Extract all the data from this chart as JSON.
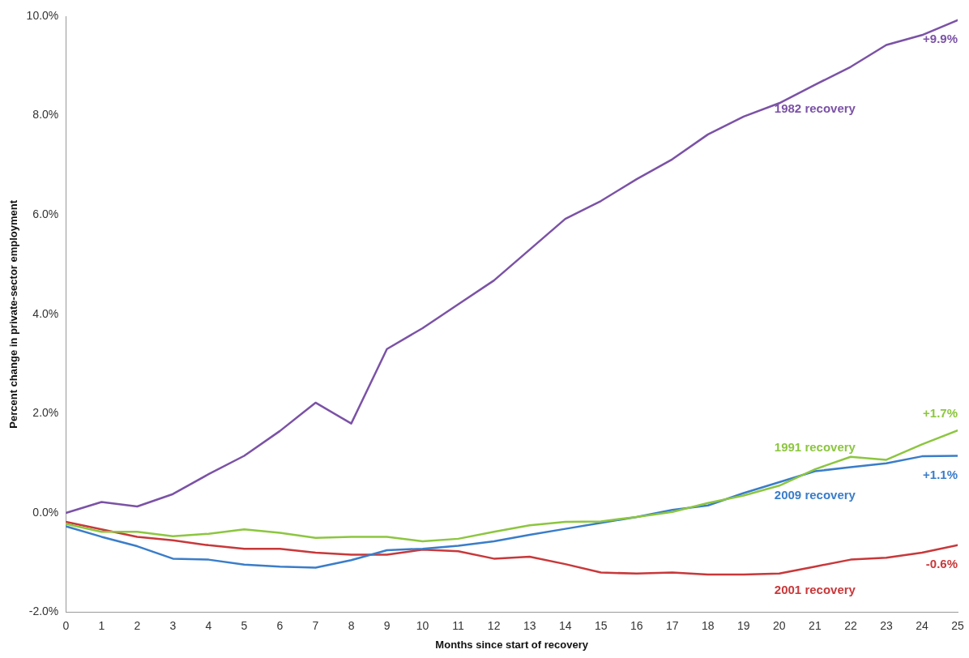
{
  "chart_data": {
    "type": "line",
    "xlabel": "Months since start of recovery",
    "ylabel": "Percent change in private-sector employment",
    "x": [
      0,
      1,
      2,
      3,
      4,
      5,
      6,
      7,
      8,
      9,
      10,
      11,
      12,
      13,
      14,
      15,
      16,
      17,
      18,
      19,
      20,
      21,
      22,
      23,
      24,
      25
    ],
    "xlim": [
      0,
      25
    ],
    "xticks": [
      0,
      1,
      2,
      3,
      4,
      5,
      6,
      7,
      8,
      9,
      10,
      11,
      12,
      13,
      14,
      15,
      16,
      17,
      18,
      19,
      20,
      21,
      22,
      23,
      24,
      25
    ],
    "ylim": [
      -2,
      10
    ],
    "yticks": [
      {
        "value": -2,
        "label": "-2.0%"
      },
      {
        "value": 0,
        "label": "0.0%"
      },
      {
        "value": 2,
        "label": "2.0%"
      },
      {
        "value": 4,
        "label": "4.0%"
      },
      {
        "value": 6,
        "label": "6.0%"
      },
      {
        "value": 8,
        "label": "8.0%"
      },
      {
        "value": 10,
        "label": "10.0%"
      }
    ],
    "grid": false,
    "legend": false,
    "marker": "none",
    "line_style": "solid",
    "series": [
      {
        "name": "1982 recovery",
        "color": "#7b52a6",
        "value_labels": [
          null,
          null,
          null,
          null,
          null,
          null,
          null,
          null,
          null,
          null,
          null,
          null,
          null,
          null,
          null,
          null,
          null,
          null,
          null,
          null,
          null,
          null,
          null,
          null,
          null,
          "+9.9%"
        ],
        "values": [
          0,
          0.22,
          0.13,
          0.38,
          0.78,
          1.15,
          1.65,
          2.22,
          1.8,
          3.3,
          3.72,
          4.2,
          4.68,
          5.3,
          5.92,
          6.28,
          6.72,
          7.12,
          7.62,
          7.98,
          8.25,
          8.62,
          8.98,
          9.42,
          9.62,
          9.92
        ]
      },
      {
        "name": "1991 recovery",
        "color": "#8cc63f",
        "value_labels": [
          null,
          null,
          null,
          null,
          null,
          null,
          null,
          null,
          null,
          null,
          null,
          null,
          null,
          null,
          null,
          null,
          null,
          null,
          null,
          null,
          null,
          null,
          null,
          null,
          null,
          "+1.7%"
        ],
        "values": [
          -0.22,
          -0.38,
          -0.38,
          -0.47,
          -0.42,
          -0.33,
          -0.4,
          -0.5,
          -0.48,
          -0.48,
          -0.57,
          -0.52,
          -0.38,
          -0.25,
          -0.18,
          -0.17,
          -0.08,
          0.02,
          0.2,
          0.35,
          0.55,
          0.88,
          1.13,
          1.07,
          1.38,
          1.66
        ]
      },
      {
        "name": "2009 recovery",
        "color": "#3a7dc9",
        "value_labels": [
          null,
          null,
          null,
          null,
          null,
          null,
          null,
          null,
          null,
          null,
          null,
          null,
          null,
          null,
          null,
          null,
          null,
          null,
          null,
          null,
          null,
          null,
          null,
          null,
          null,
          "+1.1%"
        ],
        "values": [
          -0.27,
          -0.48,
          -0.67,
          -0.92,
          -0.94,
          -1.04,
          -1.08,
          -1.1,
          -0.95,
          -0.75,
          -0.72,
          -0.66,
          -0.57,
          -0.44,
          -0.32,
          -0.2,
          -0.08,
          0.06,
          0.15,
          0.4,
          0.62,
          0.84,
          0.92,
          1.0,
          1.14,
          1.15
        ]
      },
      {
        "name": "2001 recovery",
        "color": "#c8383a",
        "value_labels": [
          null,
          null,
          null,
          null,
          null,
          null,
          null,
          null,
          null,
          null,
          null,
          null,
          null,
          null,
          null,
          null,
          null,
          null,
          null,
          null,
          null,
          null,
          null,
          null,
          null,
          "-0.6%"
        ],
        "values": [
          -0.18,
          -0.33,
          -0.48,
          -0.55,
          -0.65,
          -0.72,
          -0.72,
          -0.8,
          -0.84,
          -0.84,
          -0.74,
          -0.77,
          -0.92,
          -0.88,
          -1.03,
          -1.2,
          -1.22,
          -1.2,
          -1.24,
          -1.24,
          -1.22,
          -1.08,
          -0.94,
          -0.9,
          -0.8,
          -0.65
        ]
      }
    ]
  }
}
